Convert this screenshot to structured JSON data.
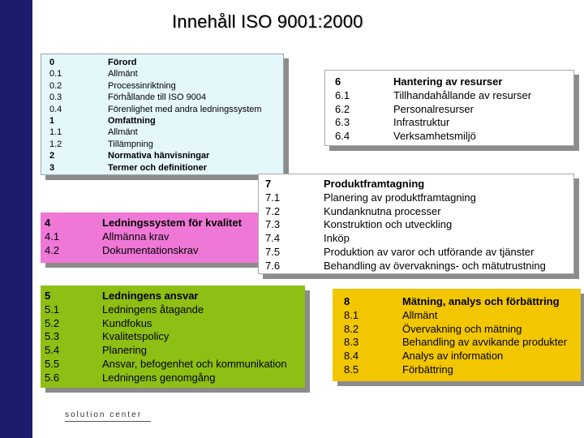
{
  "title": "Innehåll ISO 9001:2000",
  "colors": {
    "sidebar": "#1c1c6e",
    "box_intro": "#e4f7fb",
    "box_6": "#ffffff",
    "box_7": "#ffffff",
    "box_4": "#ef78d7",
    "box_5": "#8dbf14",
    "box_8": "#f2c600",
    "shadow": "#8c8c8c"
  },
  "box_intro": {
    "rows": [
      {
        "num": "0",
        "label": "Förord",
        "bold": true
      },
      {
        "num": "0.1",
        "label": "Allmänt",
        "bold": false
      },
      {
        "num": "0.2",
        "label": "Processinriktning",
        "bold": false
      },
      {
        "num": "0.3",
        "label": "Förhållande till ISO 9004",
        "bold": false
      },
      {
        "num": "0.4",
        "label": "Förenlighet med andra ledningssystem",
        "bold": false
      },
      {
        "num": "1",
        "label": "Omfattning",
        "bold": true
      },
      {
        "num": "1.1",
        "label": "Allmänt",
        "bold": false
      },
      {
        "num": "1.2",
        "label": "Tillämpning",
        "bold": false
      },
      {
        "num": "2",
        "label": "Normativa hänvisningar",
        "bold": true
      },
      {
        "num": "3",
        "label": "Termer och definitioner",
        "bold": true
      }
    ]
  },
  "box_6": {
    "rows": [
      {
        "num": "6",
        "label": "Hantering av resurser",
        "bold": true
      },
      {
        "num": "6.1",
        "label": "Tillhandahållande av resurser",
        "bold": false
      },
      {
        "num": "6.2",
        "label": "Personalresurser",
        "bold": false
      },
      {
        "num": "6.3",
        "label": "Infrastruktur",
        "bold": false
      },
      {
        "num": "6.4",
        "label": "Verksamhetsmiljö",
        "bold": false
      }
    ]
  },
  "box_7": {
    "rows": [
      {
        "num": "7",
        "label": "Produktframtagning",
        "bold": true
      },
      {
        "num": "7.1",
        "label": "Planering av produktframtagning",
        "bold": false
      },
      {
        "num": "7.2",
        "label": "Kundanknutna processer",
        "bold": false
      },
      {
        "num": "7.3",
        "label": "Konstruktion och utveckling",
        "bold": false
      },
      {
        "num": "7.4",
        "label": "Inköp",
        "bold": false
      },
      {
        "num": "7.5",
        "label": "Produktion av varor och utförande av tjänster",
        "bold": false
      },
      {
        "num": "7.6",
        "label": "Behandling av övervaknings- och mätutrustning",
        "bold": false
      }
    ]
  },
  "box_4": {
    "rows": [
      {
        "num": "4",
        "label": "Ledningssystem för kvalitet",
        "bold": true
      },
      {
        "num": "4.1",
        "label": "Allmänna krav",
        "bold": false
      },
      {
        "num": "4.2",
        "label": "Dokumentationskrav",
        "bold": false
      }
    ]
  },
  "box_5": {
    "rows": [
      {
        "num": "5",
        "label": "Ledningens ansvar",
        "bold": true
      },
      {
        "num": "5.1",
        "label": "Ledningens åtagande",
        "bold": false
      },
      {
        "num": "5.2",
        "label": "Kundfokus",
        "bold": false
      },
      {
        "num": "5.3",
        "label": "Kvalitetspolicy",
        "bold": false
      },
      {
        "num": "5.4",
        "label": "Planering",
        "bold": false
      },
      {
        "num": "5.5",
        "label": "Ansvar, befogenhet och kommunikation",
        "bold": false
      },
      {
        "num": "5.6",
        "label": "Ledningens genomgång",
        "bold": false
      }
    ]
  },
  "box_8": {
    "rows": [
      {
        "num": "8",
        "label": "Mätning, analys och förbättring",
        "bold": true
      },
      {
        "num": "8.1",
        "label": "Allmänt",
        "bold": false
      },
      {
        "num": "8.2",
        "label": "Övervakning och mätning",
        "bold": false
      },
      {
        "num": "8.3",
        "label": "Behandling av avvikande produkter",
        "bold": false
      },
      {
        "num": "8.4",
        "label": "Analys av information",
        "bold": false
      },
      {
        "num": "8.5",
        "label": "Förbättring",
        "bold": false
      }
    ]
  },
  "footer": "solution center"
}
